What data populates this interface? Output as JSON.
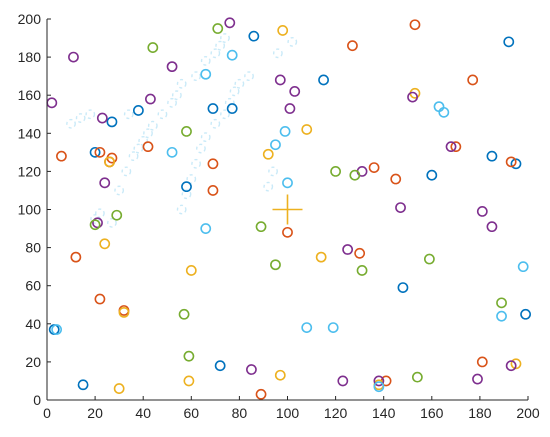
{
  "chart_data": {
    "type": "scatter",
    "title": "",
    "xlabel": "",
    "ylabel": "",
    "xlim": [
      0,
      200
    ],
    "ylim": [
      0,
      200
    ],
    "x_ticks": [
      0,
      20,
      40,
      60,
      80,
      100,
      120,
      140,
      160,
      180,
      200
    ],
    "y_ticks": [
      0,
      20,
      40,
      60,
      80,
      100,
      120,
      140,
      160,
      180,
      200
    ],
    "grid": false,
    "legend": "none",
    "marker": "circle",
    "center_marker": {
      "x": 100,
      "y": 100,
      "marker": "plus",
      "color": "#EDB120"
    },
    "series": [
      {
        "color": "#0072BD",
        "points": [
          [
            3,
            37
          ],
          [
            15,
            8
          ],
          [
            20,
            130
          ],
          [
            27,
            146
          ],
          [
            38,
            152
          ],
          [
            58,
            112
          ],
          [
            69,
            153
          ],
          [
            72,
            18
          ],
          [
            77,
            153
          ],
          [
            86,
            191
          ],
          [
            115,
            168
          ],
          [
            148,
            59
          ],
          [
            160,
            118
          ],
          [
            185,
            128
          ],
          [
            192,
            188
          ],
          [
            195,
            124
          ],
          [
            199,
            45
          ]
        ]
      },
      {
        "color": "#D95319",
        "points": [
          [
            6,
            128
          ],
          [
            12,
            75
          ],
          [
            22,
            53
          ],
          [
            22,
            130
          ],
          [
            26,
            125
          ],
          [
            27,
            127
          ],
          [
            32,
            47
          ],
          [
            42,
            133
          ],
          [
            69,
            124
          ],
          [
            69,
            110
          ],
          [
            89,
            3
          ],
          [
            100,
            88
          ],
          [
            127,
            186
          ],
          [
            130,
            77
          ],
          [
            136,
            122
          ],
          [
            141,
            10
          ],
          [
            145,
            116
          ],
          [
            153,
            197
          ],
          [
            170,
            133
          ],
          [
            177,
            168
          ],
          [
            181,
            20
          ],
          [
            193,
            125
          ]
        ]
      },
      {
        "color": "#EDB120",
        "points": [
          [
            24,
            82
          ],
          [
            26,
            125
          ],
          [
            30,
            6
          ],
          [
            32,
            46
          ],
          [
            59,
            10
          ],
          [
            60,
            68
          ],
          [
            92,
            129
          ],
          [
            97,
            13
          ],
          [
            98,
            194
          ],
          [
            108,
            142
          ],
          [
            114,
            75
          ],
          [
            138,
            8
          ],
          [
            153,
            161
          ],
          [
            195,
            19
          ]
        ]
      },
      {
        "color": "#7E2F8E",
        "points": [
          [
            2,
            156
          ],
          [
            11,
            180
          ],
          [
            21,
            93
          ],
          [
            23,
            148
          ],
          [
            24,
            114
          ],
          [
            43,
            158
          ],
          [
            52,
            175
          ],
          [
            76,
            198
          ],
          [
            85,
            16
          ],
          [
            97,
            168
          ],
          [
            101,
            153
          ],
          [
            103,
            162
          ],
          [
            123,
            10
          ],
          [
            125,
            79
          ],
          [
            131,
            120
          ],
          [
            138,
            10
          ],
          [
            147,
            101
          ],
          [
            152,
            159
          ],
          [
            168,
            133
          ],
          [
            179,
            11
          ],
          [
            181,
            99
          ],
          [
            185,
            91
          ],
          [
            193,
            18
          ]
        ]
      },
      {
        "color": "#77AC30",
        "points": [
          [
            20,
            92
          ],
          [
            29,
            97
          ],
          [
            44,
            185
          ],
          [
            57,
            45
          ],
          [
            58,
            141
          ],
          [
            59,
            23
          ],
          [
            71,
            195
          ],
          [
            89,
            91
          ],
          [
            95,
            71
          ],
          [
            120,
            120
          ],
          [
            128,
            118
          ],
          [
            131,
            68
          ],
          [
            154,
            12
          ],
          [
            159,
            74
          ],
          [
            189,
            51
          ]
        ]
      },
      {
        "color": "#4DBEEE",
        "points": [
          [
            4,
            37
          ],
          [
            52,
            130
          ],
          [
            66,
            90
          ],
          [
            66,
            171
          ],
          [
            77,
            181
          ],
          [
            95,
            134
          ],
          [
            99,
            141
          ],
          [
            100,
            114
          ],
          [
            108,
            38
          ],
          [
            119,
            38
          ],
          [
            138,
            7
          ],
          [
            163,
            154
          ],
          [
            165,
            151
          ],
          [
            189,
            44
          ],
          [
            198,
            70
          ]
        ]
      }
    ]
  }
}
